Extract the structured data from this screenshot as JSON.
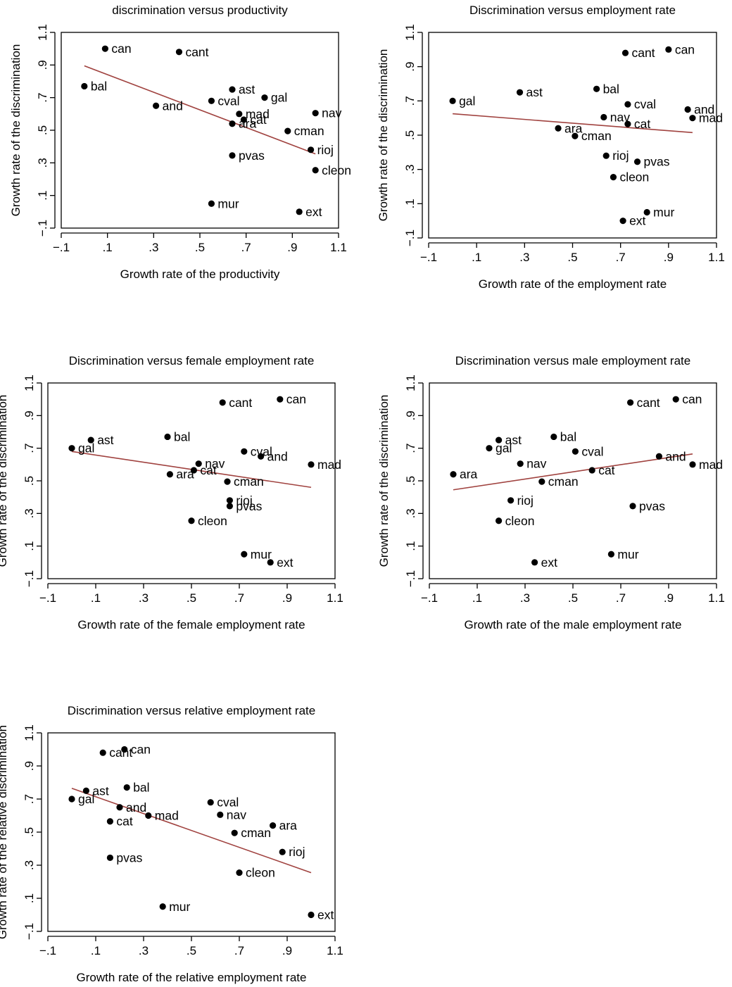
{
  "colors": {
    "fit_line": "#a0423f",
    "points": "#000000"
  },
  "chart_data": [
    {
      "type": "scatter",
      "title": "discrimination versus productivity",
      "xlabel": "Growth rate of the productivity",
      "ylabel": "Growth rate of the discrimination",
      "xlim": [
        -0.1,
        1.1
      ],
      "ylim": [
        -0.1,
        1.1
      ],
      "xticks": [
        "−.1",
        ".1",
        ".3",
        ".5",
        ".7",
        ".9",
        "1.1"
      ],
      "yticks": [
        "−.1",
        ".1",
        ".3",
        ".5",
        ".7",
        ".9",
        "1.1"
      ],
      "fit": {
        "x": [
          0.0,
          1.0
        ],
        "y": [
          0.895,
          0.355
        ]
      },
      "points": [
        {
          "label": "can",
          "x": 0.09,
          "y": 1.0
        },
        {
          "label": "cant",
          "x": 0.41,
          "y": 0.98
        },
        {
          "label": "bal",
          "x": 0.0,
          "y": 0.77
        },
        {
          "label": "and",
          "x": 0.31,
          "y": 0.65
        },
        {
          "label": "ast",
          "x": 0.64,
          "y": 0.75
        },
        {
          "label": "gal",
          "x": 0.78,
          "y": 0.7
        },
        {
          "label": "cval",
          "x": 0.55,
          "y": 0.68
        },
        {
          "label": "mad",
          "x": 0.67,
          "y": 0.6
        },
        {
          "label": "cat",
          "x": 0.69,
          "y": 0.565
        },
        {
          "label": "ara",
          "x": 0.64,
          "y": 0.54
        },
        {
          "label": "nav",
          "x": 1.0,
          "y": 0.605
        },
        {
          "label": "cman",
          "x": 0.88,
          "y": 0.495
        },
        {
          "label": "rioj",
          "x": 0.98,
          "y": 0.38
        },
        {
          "label": "pvas",
          "x": 0.64,
          "y": 0.345
        },
        {
          "label": "cleon",
          "x": 1.0,
          "y": 0.255
        },
        {
          "label": "mur",
          "x": 0.55,
          "y": 0.05
        },
        {
          "label": "ext",
          "x": 0.93,
          "y": 0.0
        }
      ]
    },
    {
      "type": "scatter",
      "title": "Discrimination versus employment rate",
      "xlabel": "Growth rate of the employment rate",
      "ylabel": "Growth rate of the discrimination",
      "xlim": [
        -0.1,
        1.1
      ],
      "ylim": [
        -0.1,
        1.1
      ],
      "xticks": [
        "−.1",
        ".1",
        ".3",
        ".5",
        ".7",
        ".9",
        "1.1"
      ],
      "yticks": [
        "−.1",
        ".1",
        ".3",
        ".5",
        ".7",
        ".9",
        "1.1"
      ],
      "fit": {
        "x": [
          0.0,
          1.0
        ],
        "y": [
          0.625,
          0.515
        ]
      },
      "points": [
        {
          "label": "can",
          "x": 0.9,
          "y": 1.0
        },
        {
          "label": "cant",
          "x": 0.72,
          "y": 0.98
        },
        {
          "label": "gal",
          "x": 0.0,
          "y": 0.7
        },
        {
          "label": "ast",
          "x": 0.28,
          "y": 0.75
        },
        {
          "label": "bal",
          "x": 0.6,
          "y": 0.77
        },
        {
          "label": "cval",
          "x": 0.73,
          "y": 0.68
        },
        {
          "label": "and",
          "x": 0.98,
          "y": 0.65
        },
        {
          "label": "mad",
          "x": 1.0,
          "y": 0.6
        },
        {
          "label": "nav",
          "x": 0.63,
          "y": 0.605
        },
        {
          "label": "cat",
          "x": 0.73,
          "y": 0.565
        },
        {
          "label": "ara",
          "x": 0.44,
          "y": 0.54
        },
        {
          "label": "cman",
          "x": 0.51,
          "y": 0.495
        },
        {
          "label": "rioj",
          "x": 0.64,
          "y": 0.38
        },
        {
          "label": "pvas",
          "x": 0.77,
          "y": 0.345
        },
        {
          "label": "cleon",
          "x": 0.67,
          "y": 0.255
        },
        {
          "label": "mur",
          "x": 0.81,
          "y": 0.05
        },
        {
          "label": "ext",
          "x": 0.71,
          "y": 0.0
        }
      ]
    },
    {
      "type": "scatter",
      "title": "Discrimination versus female employment rate",
      "xlabel": "Growth rate of the female employment rate",
      "ylabel": "Growth rate of the discrimination",
      "xlim": [
        -0.1,
        1.1
      ],
      "ylim": [
        -0.1,
        1.1
      ],
      "xticks": [
        "−.1",
        ".1",
        ".3",
        ".5",
        ".7",
        ".9",
        "1.1"
      ],
      "yticks": [
        "−.1",
        ".1",
        ".3",
        ".5",
        ".7",
        ".9",
        "1.1"
      ],
      "fit": {
        "x": [
          0.0,
          1.0
        ],
        "y": [
          0.68,
          0.46
        ]
      },
      "points": [
        {
          "label": "can",
          "x": 0.87,
          "y": 1.0
        },
        {
          "label": "cant",
          "x": 0.63,
          "y": 0.98
        },
        {
          "label": "gal",
          "x": 0.0,
          "y": 0.7
        },
        {
          "label": "ast",
          "x": 0.08,
          "y": 0.75
        },
        {
          "label": "bal",
          "x": 0.4,
          "y": 0.77
        },
        {
          "label": "cval",
          "x": 0.72,
          "y": 0.68
        },
        {
          "label": "and",
          "x": 0.79,
          "y": 0.65
        },
        {
          "label": "mad",
          "x": 1.0,
          "y": 0.6
        },
        {
          "label": "nav",
          "x": 0.53,
          "y": 0.605
        },
        {
          "label": "cat",
          "x": 0.51,
          "y": 0.565
        },
        {
          "label": "ara",
          "x": 0.41,
          "y": 0.54
        },
        {
          "label": "cman",
          "x": 0.65,
          "y": 0.495
        },
        {
          "label": "rioj",
          "x": 0.66,
          "y": 0.38
        },
        {
          "label": "pvas",
          "x": 0.66,
          "y": 0.345
        },
        {
          "label": "cleon",
          "x": 0.5,
          "y": 0.255
        },
        {
          "label": "mur",
          "x": 0.72,
          "y": 0.05
        },
        {
          "label": "ext",
          "x": 0.83,
          "y": 0.0
        }
      ]
    },
    {
      "type": "scatter",
      "title": "Discrimination versus male employment rate",
      "xlabel": "Growth rate of the male employment rate",
      "ylabel": "Growth rate of the discrimination",
      "xlim": [
        -0.1,
        1.1
      ],
      "ylim": [
        -0.1,
        1.1
      ],
      "xticks": [
        "−.1",
        ".1",
        ".3",
        ".5",
        ".7",
        ".9",
        "1.1"
      ],
      "yticks": [
        "−.1",
        ".1",
        ".3",
        ".5",
        ".7",
        ".9",
        "1.1"
      ],
      "fit": {
        "x": [
          0.0,
          1.0
        ],
        "y": [
          0.445,
          0.665
        ]
      },
      "points": [
        {
          "label": "can",
          "x": 0.93,
          "y": 1.0
        },
        {
          "label": "cant",
          "x": 0.74,
          "y": 0.98
        },
        {
          "label": "gal",
          "x": 0.15,
          "y": 0.7
        },
        {
          "label": "ast",
          "x": 0.19,
          "y": 0.75
        },
        {
          "label": "bal",
          "x": 0.42,
          "y": 0.77
        },
        {
          "label": "cval",
          "x": 0.51,
          "y": 0.68
        },
        {
          "label": "and",
          "x": 0.86,
          "y": 0.65
        },
        {
          "label": "mad",
          "x": 1.0,
          "y": 0.6
        },
        {
          "label": "nav",
          "x": 0.28,
          "y": 0.605
        },
        {
          "label": "cat",
          "x": 0.58,
          "y": 0.565
        },
        {
          "label": "ara",
          "x": 0.0,
          "y": 0.54
        },
        {
          "label": "cman",
          "x": 0.37,
          "y": 0.495
        },
        {
          "label": "rioj",
          "x": 0.24,
          "y": 0.38
        },
        {
          "label": "pvas",
          "x": 0.75,
          "y": 0.345
        },
        {
          "label": "cleon",
          "x": 0.19,
          "y": 0.255
        },
        {
          "label": "mur",
          "x": 0.66,
          "y": 0.05
        },
        {
          "label": "ext",
          "x": 0.34,
          "y": 0.0
        }
      ]
    },
    {
      "type": "scatter",
      "title": "Discrimination versus relative employment rate",
      "xlabel": "Growth rate of the relative employment rate",
      "ylabel": "Growth rate of the relative discrimination",
      "xlim": [
        -0.1,
        1.1
      ],
      "ylim": [
        -0.1,
        1.1
      ],
      "xticks": [
        "−.1",
        ".1",
        ".3",
        ".5",
        ".7",
        ".9",
        "1.1"
      ],
      "yticks": [
        "−.1",
        ".1",
        ".3",
        ".5",
        ".7",
        ".9",
        "1.1"
      ],
      "fit": {
        "x": [
          0.0,
          1.0
        ],
        "y": [
          0.765,
          0.255
        ]
      },
      "points": [
        {
          "label": "can",
          "x": 0.22,
          "y": 1.0
        },
        {
          "label": "cant",
          "x": 0.13,
          "y": 0.98
        },
        {
          "label": "gal",
          "x": 0.0,
          "y": 0.7
        },
        {
          "label": "ast",
          "x": 0.06,
          "y": 0.75
        },
        {
          "label": "bal",
          "x": 0.23,
          "y": 0.77
        },
        {
          "label": "and",
          "x": 0.2,
          "y": 0.65
        },
        {
          "label": "mad",
          "x": 0.32,
          "y": 0.6
        },
        {
          "label": "cat",
          "x": 0.16,
          "y": 0.565
        },
        {
          "label": "pvas",
          "x": 0.16,
          "y": 0.345
        },
        {
          "label": "cval",
          "x": 0.58,
          "y": 0.68
        },
        {
          "label": "nav",
          "x": 0.62,
          "y": 0.605
        },
        {
          "label": "cman",
          "x": 0.68,
          "y": 0.495
        },
        {
          "label": "ara",
          "x": 0.84,
          "y": 0.54
        },
        {
          "label": "rioj",
          "x": 0.88,
          "y": 0.38
        },
        {
          "label": "cleon",
          "x": 0.7,
          "y": 0.255
        },
        {
          "label": "mur",
          "x": 0.38,
          "y": 0.05
        },
        {
          "label": "ext",
          "x": 1.0,
          "y": 0.0
        }
      ]
    }
  ]
}
